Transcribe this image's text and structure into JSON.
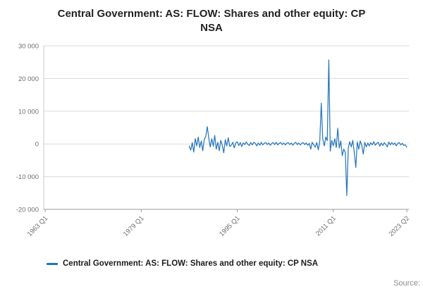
{
  "title": "Central Government: AS: FLOW: Shares and other equity: CP NSA",
  "legend": {
    "label": "Central Government: AS: FLOW: Shares and other equity: CP NSA"
  },
  "source_label": "Source:",
  "chart_data": {
    "type": "line",
    "title": "Central Government: AS: FLOW: Shares and other equity: CP NSA",
    "series_name": "Central Government: AS: FLOW: Shares and other equity: CP NSA",
    "color": "#2073bc",
    "grid_color": "#dadada",
    "axis_color": "#9b9b9b",
    "tick_label_color": "#6e6e6e",
    "legend_position": "bottom-left",
    "grid": "horizontal only",
    "xlim": [
      1962.75,
      2023.6
    ],
    "ylim": [
      -20000,
      30000
    ],
    "y_ticks": [
      {
        "value": 30000,
        "label": "30 000"
      },
      {
        "value": 20000,
        "label": "20 000"
      },
      {
        "value": 10000,
        "label": "10 000"
      },
      {
        "value": 0,
        "label": "0"
      },
      {
        "value": -10000,
        "label": "-10 000"
      },
      {
        "value": -20000,
        "label": "-20 000"
      }
    ],
    "x_ticks": [
      {
        "t": 1963.0,
        "label": "1963 Q1"
      },
      {
        "t": 1979.0,
        "label": "1979 Q1"
      },
      {
        "t": 1995.0,
        "label": "1995 Q1"
      },
      {
        "t": 2011.0,
        "label": "2011 Q1"
      },
      {
        "t": 2023.25,
        "label": "2023 Q2"
      }
    ],
    "x_unit": "quarterly, decimal years",
    "x_start": 1987.0,
    "x_step": 0.25,
    "x_end": 2023.25,
    "values": [
      -700,
      -1900,
      400,
      -2500,
      1600,
      -600,
      2100,
      -1100,
      900,
      -2100,
      1400,
      2200,
      5300,
      1800,
      -900,
      1600,
      -700,
      2600,
      -1600,
      500,
      -2100,
      1100,
      -400,
      -2700,
      1300,
      -600,
      1900,
      -800,
      -400,
      500,
      -1200,
      300,
      700,
      -500,
      400,
      -800,
      300,
      -200,
      600,
      -100,
      -500,
      400,
      -300,
      500,
      200,
      -600,
      300,
      -400,
      500,
      -300,
      200,
      400,
      -200,
      300,
      -400,
      200,
      400,
      -200,
      500,
      -300,
      200,
      400,
      -200,
      300,
      -300,
      200,
      400,
      -200,
      300,
      -400,
      200,
      500,
      -200,
      300,
      -300,
      200,
      400,
      -200,
      300,
      -400,
      200,
      -1600,
      500,
      -300,
      -1000,
      400,
      -1800,
      900,
      12500,
      1600,
      -600,
      2100,
      1000,
      25700,
      -2200,
      1100,
      -600,
      1600,
      -1100,
      4800,
      -1300,
      900,
      -3600,
      -1600,
      -2600,
      -15800,
      -1300,
      700,
      -900,
      1100,
      -2600,
      -7200,
      600,
      -1600,
      900,
      -400,
      -3100,
      500,
      -900,
      300,
      -600,
      400,
      -300,
      700,
      -400,
      200,
      500,
      -700,
      300,
      -500,
      400,
      -200,
      -900,
      600,
      -300,
      400,
      -200,
      300,
      -600,
      200,
      400,
      -300,
      200,
      -500,
      -300,
      -1000
    ]
  }
}
